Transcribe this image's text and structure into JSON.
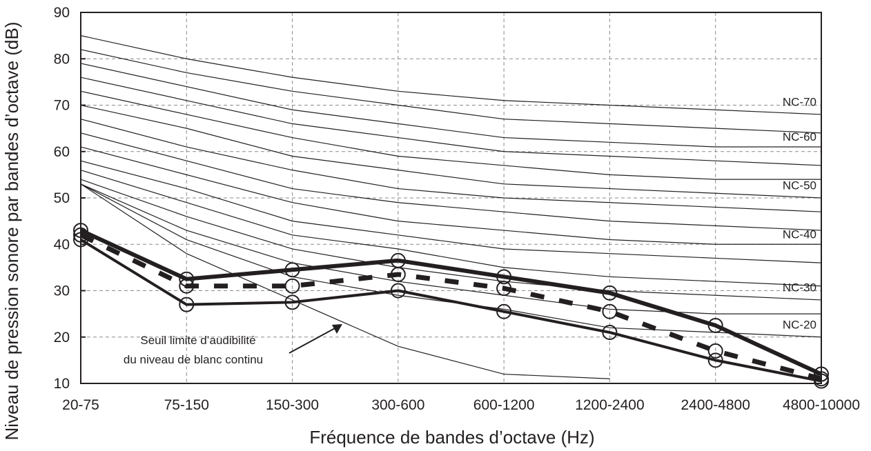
{
  "chart_data": {
    "type": "line",
    "xlabel": "Fréquence de bandes d’octave (Hz)",
    "ylabel": "Niveau de pression sonore par bandes d’octave (dB)",
    "categories": [
      "20-75",
      "75-150",
      "150-300",
      "300-600",
      "600-1200",
      "1200-2400",
      "2400-4800",
      "4800-10000"
    ],
    "ylim": [
      10,
      90
    ],
    "yticks": [
      10,
      20,
      30,
      40,
      50,
      60,
      70,
      80,
      90
    ],
    "grid": true,
    "nc_curves": [
      {
        "label": "NC-70",
        "values": [
          85,
          80,
          76,
          73,
          71,
          70,
          69,
          68
        ]
      },
      {
        "label": "",
        "values": [
          82,
          77,
          73,
          70,
          67,
          66,
          65,
          64
        ]
      },
      {
        "label": "NC-60",
        "values": [
          79,
          74,
          69,
          66,
          63,
          62,
          61,
          61
        ]
      },
      {
        "label": "",
        "values": [
          76,
          71,
          66,
          63,
          60,
          59,
          58,
          57
        ]
      },
      {
        "label": "",
        "values": [
          73,
          68,
          63,
          59,
          57,
          55,
          54,
          54
        ]
      },
      {
        "label": "NC-50",
        "values": [
          70,
          65,
          59,
          56,
          53,
          52,
          51,
          50
        ]
      },
      {
        "label": "",
        "values": [
          67,
          61,
          56,
          52,
          50,
          49,
          48,
          47
        ]
      },
      {
        "label": "",
        "values": [
          64,
          58,
          52,
          49,
          47,
          45,
          44,
          43
        ]
      },
      {
        "label": "NC-40",
        "values": [
          61,
          55,
          49,
          45,
          43,
          41,
          40,
          40
        ]
      },
      {
        "label": "",
        "values": [
          58,
          52,
          45,
          42,
          39,
          38,
          37,
          36
        ]
      },
      {
        "label": "",
        "values": [
          56,
          49,
          42,
          39,
          35,
          33,
          32,
          31
        ]
      },
      {
        "label": "NC-30",
        "values": [
          54,
          46,
          39,
          35,
          32,
          30,
          29,
          28
        ]
      },
      {
        "label": "",
        "values": [
          53,
          43,
          36,
          32,
          29,
          26,
          25,
          25
        ]
      },
      {
        "label": "NC-20",
        "values": [
          53,
          41,
          33,
          29,
          26,
          22,
          21,
          20
        ]
      }
    ],
    "threshold_curve": {
      "x_index": [
        0,
        1,
        2,
        3,
        4,
        5
      ],
      "values": [
        53,
        38,
        28,
        18,
        12,
        11
      ]
    },
    "series": [
      {
        "style": "thick-solid",
        "values": [
          43,
          32.5,
          34.5,
          36.5,
          33,
          29.5,
          22.5,
          12
        ]
      },
      {
        "style": "dashed",
        "values": [
          42,
          31,
          31,
          33.5,
          30.5,
          25.5,
          17,
          11
        ]
      },
      {
        "style": "solid",
        "values": [
          41,
          27,
          27.5,
          30,
          25.5,
          21,
          15,
          10.5
        ]
      }
    ],
    "annotation": {
      "lines": [
        "Seuil limite d’audibilité",
        "du niveau de blanc continu"
      ]
    }
  }
}
